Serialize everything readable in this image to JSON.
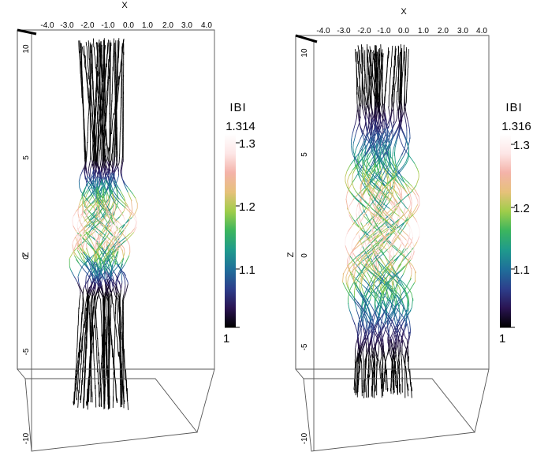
{
  "colormap": [
    "#000000",
    "#2a1452",
    "#2d3f8c",
    "#1f6f9a",
    "#1f9a8c",
    "#3cb55e",
    "#9fcd4a",
    "#e6c17a",
    "#f4b3a9",
    "#fde6e6",
    "#ffffff"
  ],
  "panels": [
    {
      "name": "left",
      "axis_x_label": "X",
      "axis_z_label": "Z",
      "x_ticks": [
        "-4.0",
        "-3.0",
        "-2.0",
        "-1.0",
        "0.0",
        "1.0",
        "2.0",
        "3.0",
        "4.0"
      ],
      "z_ticks": [
        "10",
        "5",
        "0",
        "-5",
        "-10"
      ],
      "colorbar": {
        "title": "IBI",
        "max_label": "1.314",
        "ticks": [
          "1.3",
          "1.2",
          "1.1",
          "1"
        ]
      }
    },
    {
      "name": "right",
      "axis_x_label": "X",
      "axis_z_label": "Z",
      "x_ticks": [
        "-4.0",
        "-3.0",
        "-2.0",
        "-1.0",
        "0.0",
        "1.0",
        "2.0",
        "3.0",
        "4.0"
      ],
      "z_ticks": [
        "10",
        "5",
        "0",
        "-5",
        "-10"
      ],
      "colorbar": {
        "title": "IBI",
        "max_label": "1.316",
        "ticks": [
          "1.3",
          "1.2",
          "1.1",
          "1"
        ]
      }
    }
  ]
}
